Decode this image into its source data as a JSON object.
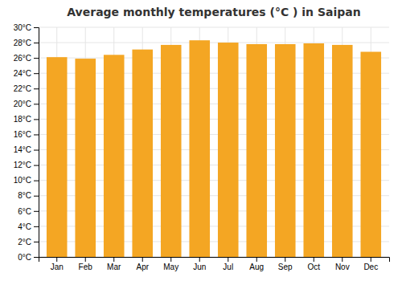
{
  "chart_data": {
    "type": "bar",
    "title": "Average monthly temperatures (°C ) in Saipan",
    "categories": [
      "Jan",
      "Feb",
      "Mar",
      "Apr",
      "May",
      "Jun",
      "Jul",
      "Aug",
      "Sep",
      "Oct",
      "Nov",
      "Dec"
    ],
    "values": [
      26.1,
      25.9,
      26.4,
      27.1,
      27.7,
      28.3,
      28.0,
      27.8,
      27.8,
      27.9,
      27.7,
      26.8
    ],
    "color": "#F4A623",
    "ylim": [
      0,
      30
    ],
    "yticks": [
      {
        "value": 0,
        "label": "0°C"
      },
      {
        "value": 2,
        "label": "2°C"
      },
      {
        "value": 4,
        "label": "4°C"
      },
      {
        "value": 6,
        "label": "6°C"
      },
      {
        "value": 8,
        "label": "8°C"
      },
      {
        "value": 10,
        "label": "10°C"
      },
      {
        "value": 12,
        "label": "12°C"
      },
      {
        "value": 14,
        "label": "14°C"
      },
      {
        "value": 16,
        "label": "16°C"
      },
      {
        "value": 18,
        "label": "18°C"
      },
      {
        "value": 20,
        "label": "20°C"
      },
      {
        "value": 22,
        "label": "22°C"
      },
      {
        "value": 24,
        "label": "24°C"
      },
      {
        "value": 26,
        "label": "26°C"
      },
      {
        "value": 28,
        "label": "28°C"
      },
      {
        "value": 30,
        "label": "30°C"
      }
    ],
    "grid": true
  }
}
